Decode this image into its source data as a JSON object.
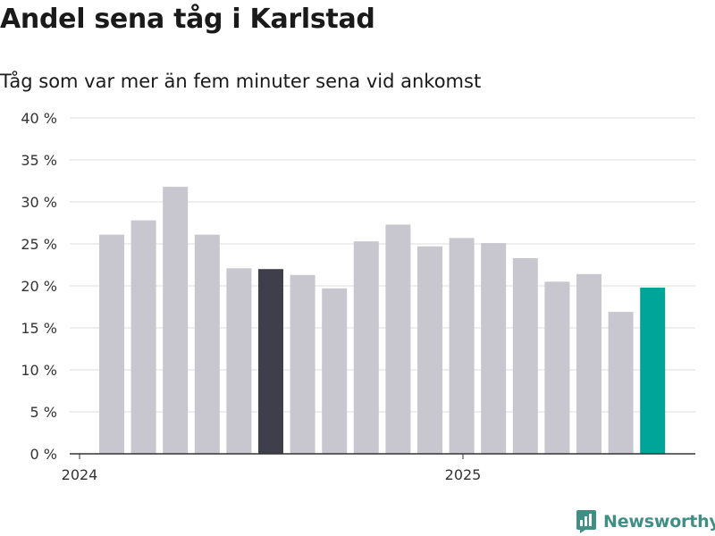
{
  "title": "Andel sena tåg i Karlstad",
  "subtitle": "Tåg som var mer än fem minuter sena vid ankomst",
  "brand": "Newsworthy",
  "colors": {
    "bar_default": "#c8c7cf",
    "bar_highlight_dark": "#3f3e4b",
    "bar_highlight_accent": "#00a59a",
    "grid": "#dcdcdc",
    "axis": "#333333",
    "brand": "#3f8f86"
  },
  "chart_data": {
    "type": "bar",
    "ylim": [
      0,
      40
    ],
    "y_ticks": [
      {
        "value": 0,
        "label": "0 %"
      },
      {
        "value": 5,
        "label": "5 %"
      },
      {
        "value": 10,
        "label": "10 %"
      },
      {
        "value": 15,
        "label": "15 %"
      },
      {
        "value": 20,
        "label": "20 %"
      },
      {
        "value": 25,
        "label": "25 %"
      },
      {
        "value": 30,
        "label": "30 %"
      },
      {
        "value": 35,
        "label": "35 %"
      },
      {
        "value": 40,
        "label": "40 %"
      }
    ],
    "x_ticks": [
      "2024",
      "2025"
    ],
    "grid": true,
    "values": [
      26.1,
      27.8,
      31.8,
      26.1,
      22.1,
      22.0,
      21.3,
      19.7,
      25.3,
      27.3,
      24.7,
      25.7,
      25.1,
      23.3,
      20.5,
      21.4,
      16.9,
      19.8
    ],
    "highlights": {
      "5": "dark",
      "17": "accent"
    }
  }
}
